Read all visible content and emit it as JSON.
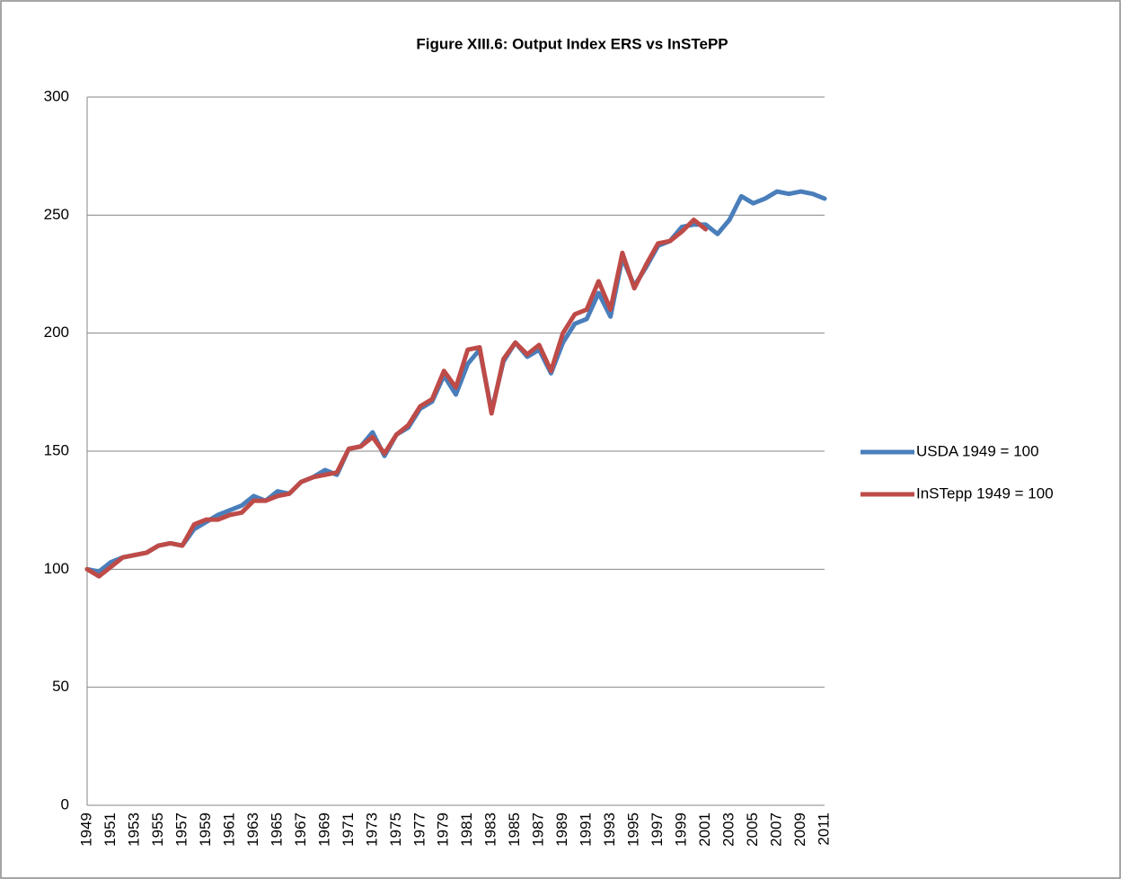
{
  "chart_data": {
    "type": "line",
    "title": "Figure XIII.6: Output Index ERS vs InSTePP",
    "categories": [
      "1949",
      null,
      "1951",
      null,
      "1953",
      null,
      "1955",
      null,
      "1957",
      null,
      "1959",
      null,
      "1961",
      null,
      "1963",
      null,
      "1965",
      null,
      "1967",
      null,
      "1969",
      null,
      "1971",
      null,
      "1973",
      null,
      "1975",
      null,
      "1977",
      null,
      "1979",
      null,
      "1981",
      null,
      "1983",
      null,
      "1985",
      null,
      "1987",
      null,
      "1989",
      null,
      "1991",
      null,
      "1993",
      null,
      "1995",
      null,
      "1997",
      null,
      "1999",
      null,
      "2001",
      null,
      "2003",
      null,
      "2005",
      null,
      "2007",
      null,
      "2009",
      null,
      "2011"
    ],
    "series": [
      {
        "name": "USDA 1949 = 100",
        "color": "#4a7ebb",
        "values": [
          100,
          99,
          103,
          105,
          106,
          107,
          110,
          111,
          110,
          117,
          120,
          123,
          125,
          127,
          131,
          129,
          133,
          132,
          137,
          139,
          142,
          140,
          151,
          152,
          158,
          148,
          157,
          160,
          168,
          171,
          182,
          174,
          187,
          193,
          167,
          188,
          196,
          190,
          193,
          183,
          196,
          204,
          206,
          217,
          207,
          232,
          220,
          228,
          237,
          239,
          245,
          246,
          246,
          242,
          248,
          258,
          255,
          257,
          260,
          259,
          260,
          259,
          257
        ]
      },
      {
        "name": "InSTepp 1949 = 100",
        "color": "#be4b48",
        "values": [
          100,
          97,
          101,
          105,
          106,
          107,
          110,
          111,
          110,
          119,
          121,
          121,
          123,
          124,
          129,
          129,
          131,
          132,
          137,
          139,
          140,
          141,
          151,
          152,
          156,
          149,
          157,
          161,
          169,
          172,
          184,
          177,
          193,
          194,
          166,
          189,
          196,
          191,
          195,
          184,
          200,
          208,
          210,
          222,
          210,
          234,
          219,
          229,
          238,
          239,
          243,
          248,
          244,
          null,
          null,
          null,
          null,
          null,
          null,
          null,
          null,
          null,
          null
        ]
      }
    ],
    "ylim": [
      0,
      300
    ],
    "yticks": [
      0,
      50,
      100,
      150,
      200,
      250,
      300
    ],
    "grid": true,
    "legend": "right"
  }
}
